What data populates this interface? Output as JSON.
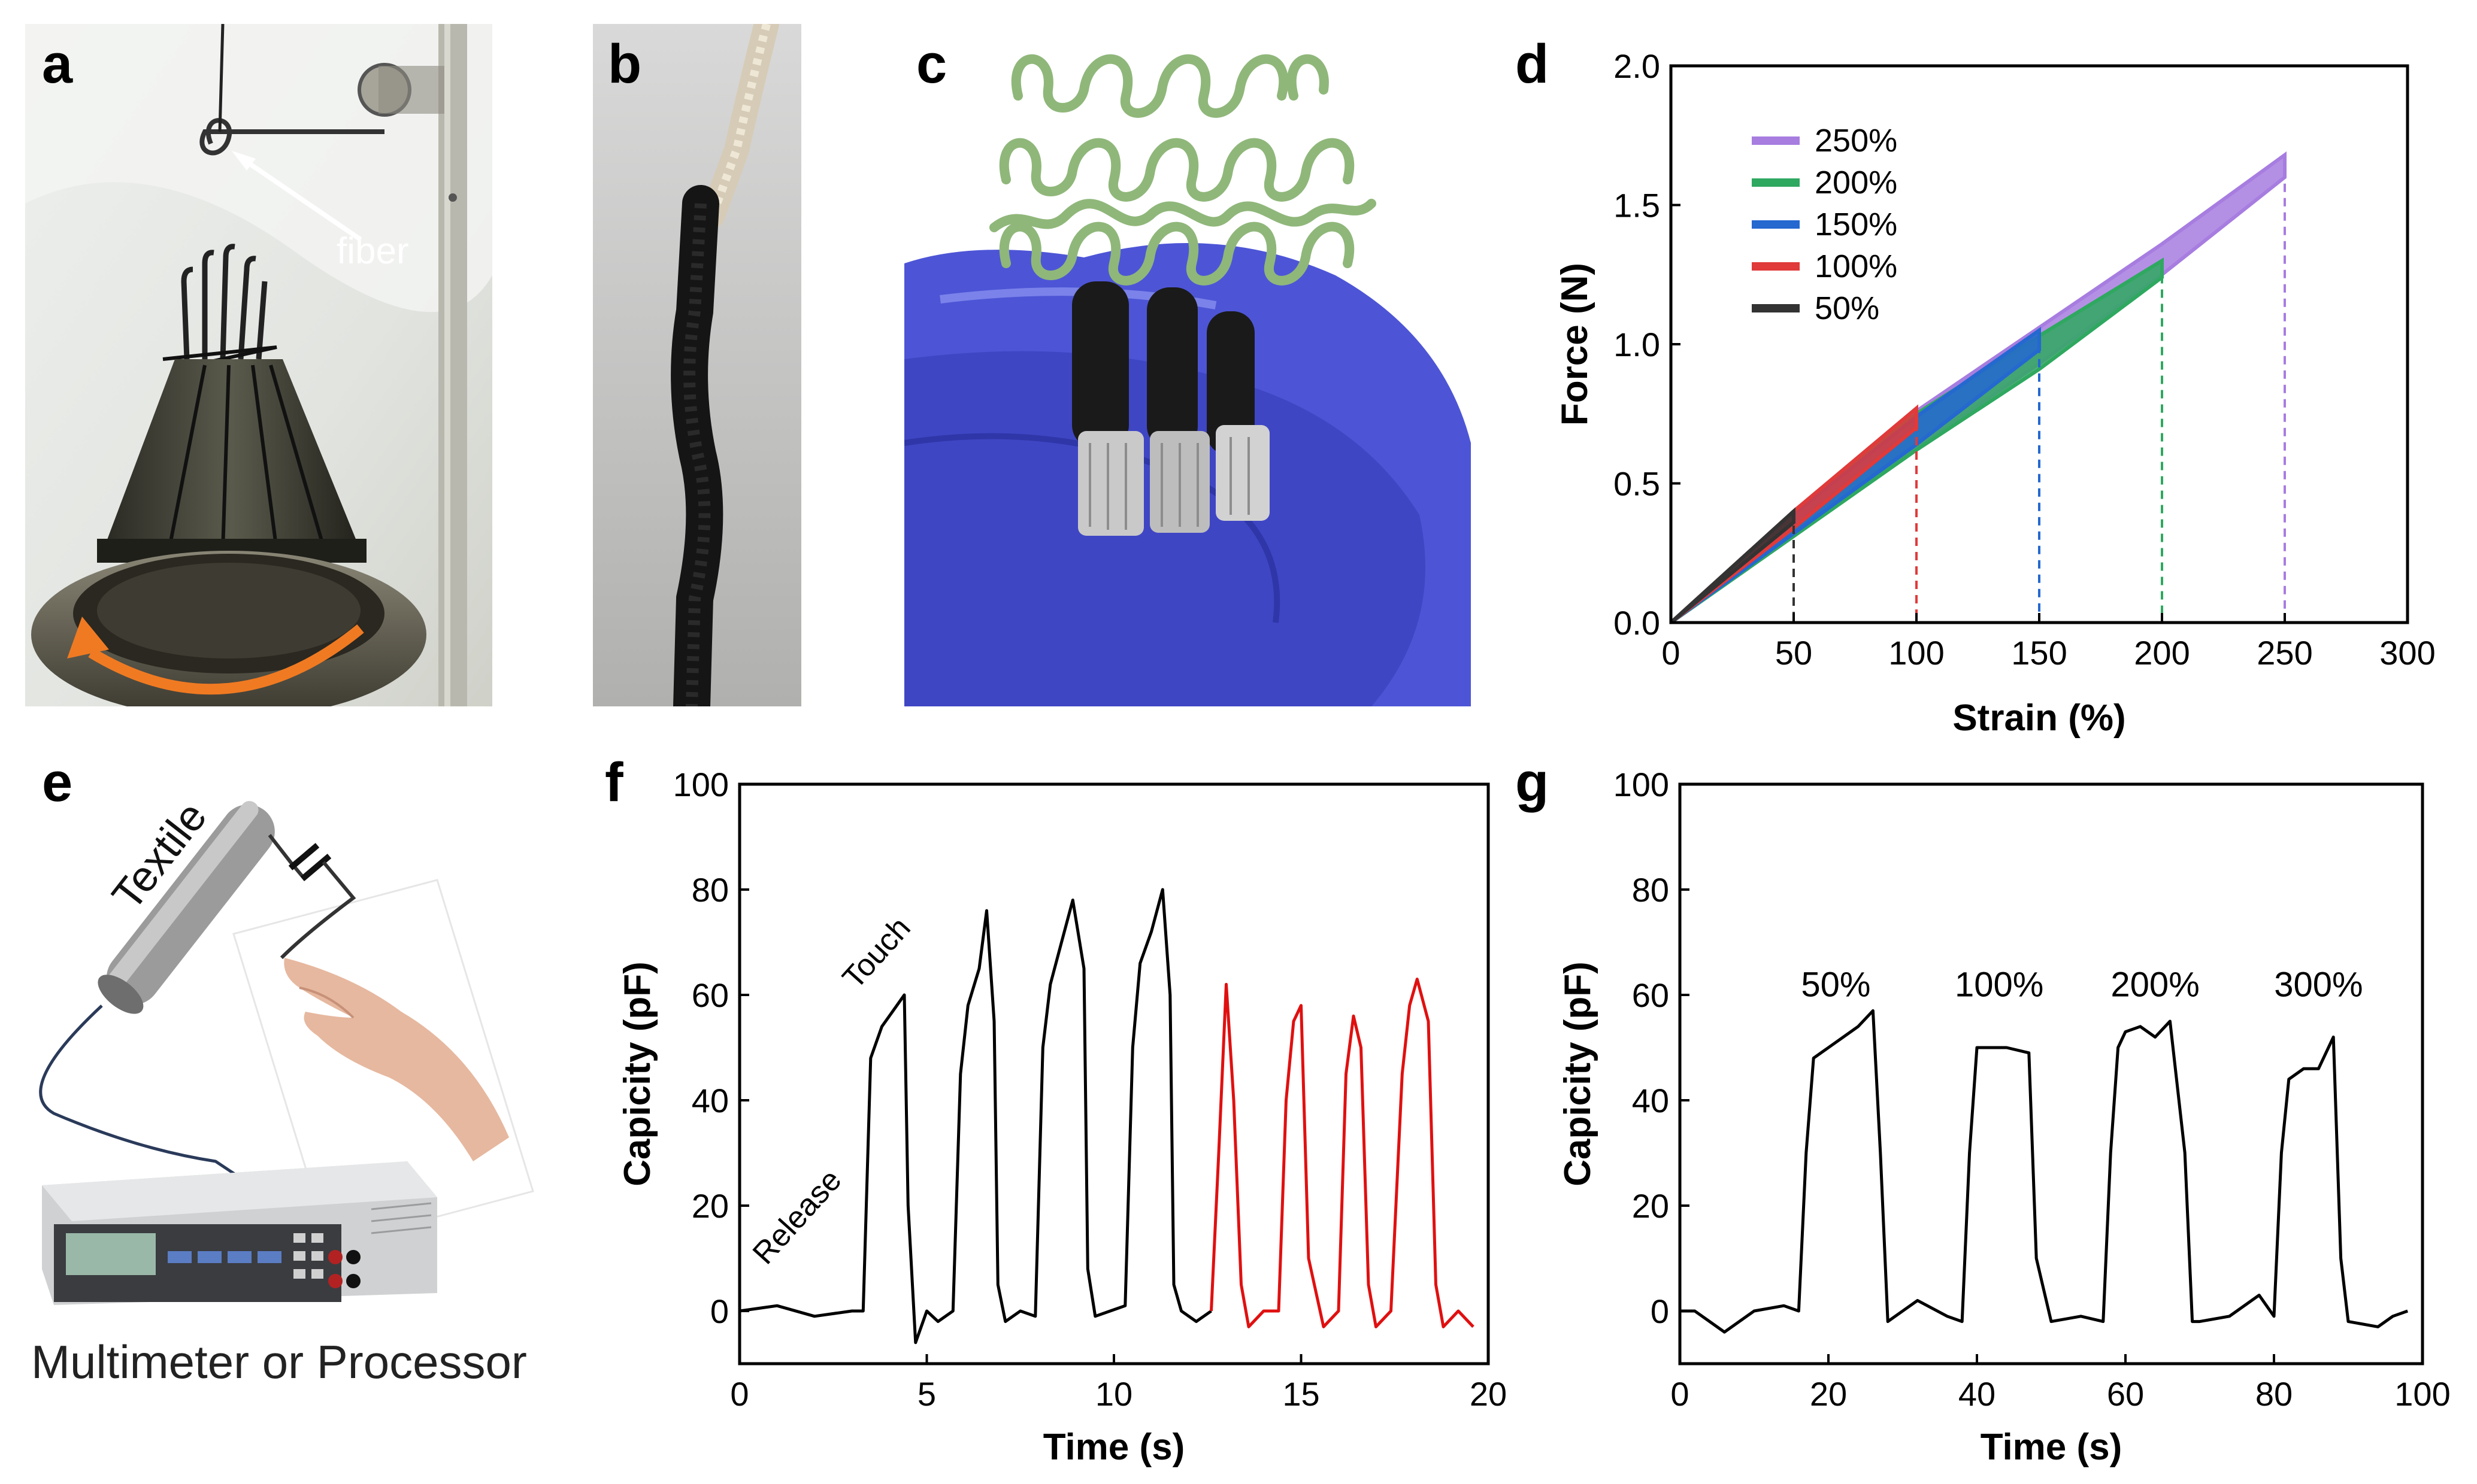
{
  "panels": {
    "a": {
      "letter": "a",
      "annotation": "fiber"
    },
    "b": {
      "letter": "b"
    },
    "c": {
      "letter": "c"
    },
    "d": {
      "letter": "d"
    },
    "e": {
      "letter": "e",
      "textile_label": "Textile",
      "caption": "Multimeter or Processor"
    },
    "f": {
      "letter": "f",
      "touch_label": "Touch",
      "release_label": "Release"
    },
    "g": {
      "letter": "g"
    }
  },
  "colors": {
    "s250": "#a77de0",
    "s200": "#2fa860",
    "s150": "#2468d0",
    "s100": "#e03a3a",
    "s50": "#333333",
    "black": "#000000",
    "red": "#e01010",
    "knit_green": "#8fb77a",
    "glove": "#4d55d6"
  },
  "chart_data": [
    {
      "id": "d",
      "type": "line",
      "title": "",
      "xlabel": "Strain (%)",
      "ylabel": "Force (N)",
      "xlim": [
        0,
        300
      ],
      "ylim": [
        0,
        2.0
      ],
      "xticks": [
        "0",
        "50",
        "100",
        "150",
        "200",
        "250",
        "300"
      ],
      "yticks": [
        "0.0",
        "0.5",
        "1.0",
        "1.5",
        "2.0"
      ],
      "legend_position": "top-left",
      "series": [
        {
          "name": "250%",
          "color": "#a77de0",
          "max_strain": 250,
          "x": [
            0,
            50,
            100,
            150,
            200,
            250
          ],
          "y_load": [
            0,
            0.4,
            0.76,
            1.06,
            1.36,
            1.68
          ],
          "y_unload": [
            0,
            0.31,
            0.63,
            0.93,
            1.25,
            1.6
          ]
        },
        {
          "name": "200%",
          "color": "#2fa860",
          "max_strain": 200,
          "x": [
            0,
            50,
            100,
            150,
            200
          ],
          "y_load": [
            0,
            0.4,
            0.75,
            1.03,
            1.3
          ],
          "y_unload": [
            0,
            0.31,
            0.62,
            0.91,
            1.24
          ]
        },
        {
          "name": "150%",
          "color": "#2468d0",
          "max_strain": 150,
          "x": [
            0,
            50,
            100,
            150
          ],
          "y_load": [
            0,
            0.39,
            0.74,
            1.05
          ],
          "y_unload": [
            0,
            0.32,
            0.64,
            0.98
          ]
        },
        {
          "name": "100%",
          "color": "#e03a3a",
          "max_strain": 100,
          "x": [
            0,
            50,
            100
          ],
          "y_load": [
            0,
            0.4,
            0.77
          ],
          "y_unload": [
            0,
            0.34,
            0.7
          ]
        },
        {
          "name": "50%",
          "color": "#333333",
          "max_strain": 50,
          "x": [
            0,
            50
          ],
          "y_load": [
            0,
            0.4
          ],
          "y_unload": [
            0,
            0.36
          ]
        }
      ]
    },
    {
      "id": "f",
      "type": "line",
      "xlabel": "Time (s)",
      "ylabel": "Capicity (pF)",
      "xlim": [
        0,
        20
      ],
      "ylim": [
        -10,
        100
      ],
      "xticks": [
        "0",
        "5",
        "10",
        "15",
        "20"
      ],
      "yticks": [
        "0",
        "20",
        "40",
        "60",
        "80",
        "100"
      ],
      "series": [
        {
          "name": "black",
          "color": "#000000",
          "x": [
            0,
            1,
            2,
            3,
            3.3,
            3.5,
            3.8,
            4.1,
            4.4,
            4.5,
            4.7,
            5.0,
            5.3,
            5.7,
            5.9,
            6.1,
            6.4,
            6.6,
            6.8,
            6.9,
            7.1,
            7.5,
            7.9,
            8.1,
            8.3,
            8.6,
            8.9,
            9.2,
            9.3,
            9.5,
            9.9,
            10.3,
            10.5,
            10.7,
            11.0,
            11.3,
            11.5,
            11.6,
            11.8,
            12.2,
            12.6
          ],
          "y": [
            0,
            1,
            -1,
            0,
            0,
            48,
            54,
            57,
            60,
            20,
            -6,
            0,
            -2,
            0,
            45,
            58,
            65,
            76,
            55,
            5,
            -2,
            0,
            -1,
            50,
            62,
            70,
            78,
            65,
            8,
            -1,
            0,
            1,
            50,
            66,
            72,
            80,
            60,
            5,
            0,
            -2,
            0
          ]
        },
        {
          "name": "red",
          "color": "#e01010",
          "x": [
            12.6,
            12.8,
            13.0,
            13.2,
            13.4,
            13.6,
            14.0,
            14.4,
            14.6,
            14.8,
            15.0,
            15.2,
            15.6,
            16.0,
            16.2,
            16.4,
            16.6,
            16.8,
            17.0,
            17.4,
            17.7,
            17.9,
            18.1,
            18.4,
            18.6,
            18.8,
            19.2,
            19.6
          ],
          "y": [
            0,
            30,
            62,
            40,
            5,
            -3,
            0,
            0,
            40,
            55,
            58,
            10,
            -3,
            0,
            45,
            56,
            50,
            5,
            -3,
            0,
            45,
            58,
            63,
            55,
            5,
            -3,
            0,
            -3
          ]
        }
      ]
    },
    {
      "id": "g",
      "type": "line",
      "xlabel": "Time (s)",
      "ylabel": "Capicity (pF)",
      "xlim": [
        0,
        100
      ],
      "ylim": [
        -10,
        100
      ],
      "xticks": [
        "0",
        "20",
        "40",
        "60",
        "80",
        "100"
      ],
      "yticks": [
        "0",
        "20",
        "40",
        "60",
        "80",
        "100"
      ],
      "annotations": [
        {
          "text": "50%",
          "x": 21,
          "y": 62
        },
        {
          "text": "100%",
          "x": 43,
          "y": 62
        },
        {
          "text": "200%",
          "x": 64,
          "y": 62
        },
        {
          "text": "300%",
          "x": 86,
          "y": 62
        }
      ],
      "series": [
        {
          "name": "black",
          "color": "#000000",
          "x": [
            0,
            2,
            4,
            6,
            10,
            14,
            16,
            17,
            18,
            20,
            22,
            24,
            26,
            27,
            28,
            30,
            32,
            36,
            38,
            39,
            40,
            44,
            47,
            48,
            50,
            54,
            57,
            58,
            59,
            60,
            62,
            64,
            66,
            68,
            69,
            70,
            74,
            78,
            80,
            81,
            82,
            84,
            86,
            88,
            89,
            90,
            94,
            96,
            98
          ],
          "y": [
            0,
            0,
            -2,
            -4,
            0,
            1,
            0,
            30,
            48,
            50,
            52,
            54,
            57,
            30,
            -2,
            0,
            2,
            -1,
            -2,
            30,
            50,
            50,
            49,
            10,
            -2,
            -1,
            -2,
            30,
            50,
            53,
            54,
            52,
            55,
            30,
            -2,
            -2,
            -1,
            3,
            -1,
            30,
            44,
            46,
            46,
            52,
            10,
            -2,
            -3,
            -1,
            0
          ]
        }
      ]
    }
  ]
}
